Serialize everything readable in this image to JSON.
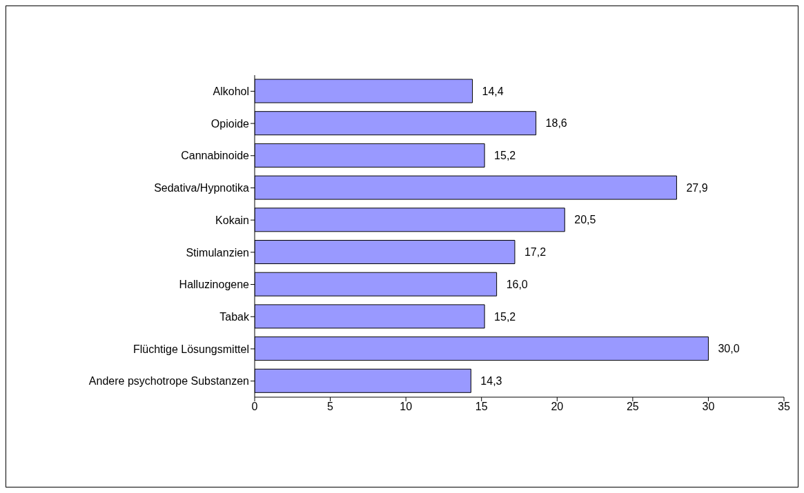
{
  "chart_data": {
    "type": "bar",
    "orientation": "horizontal",
    "categories": [
      "Alkohol",
      "Opioide",
      "Cannabinoide",
      "Sedativa/Hypnotika",
      "Kokain",
      "Stimulanzien",
      "Halluzinogene",
      "Tabak",
      "Flüchtige Lösungsmittel",
      "Andere psychotrope Substanzen"
    ],
    "values": [
      14.4,
      18.6,
      15.2,
      27.9,
      20.5,
      17.2,
      16.0,
      15.2,
      30.0,
      14.3
    ],
    "value_labels": [
      "14,4",
      "18,6",
      "15,2",
      "27,9",
      "20,5",
      "17,2",
      "16,0",
      "15,2",
      "30,0",
      "14,3"
    ],
    "color": "#9999ff",
    "xlim": [
      0,
      35
    ],
    "xticks": [
      0,
      5,
      10,
      15,
      20,
      25,
      30,
      35
    ]
  }
}
